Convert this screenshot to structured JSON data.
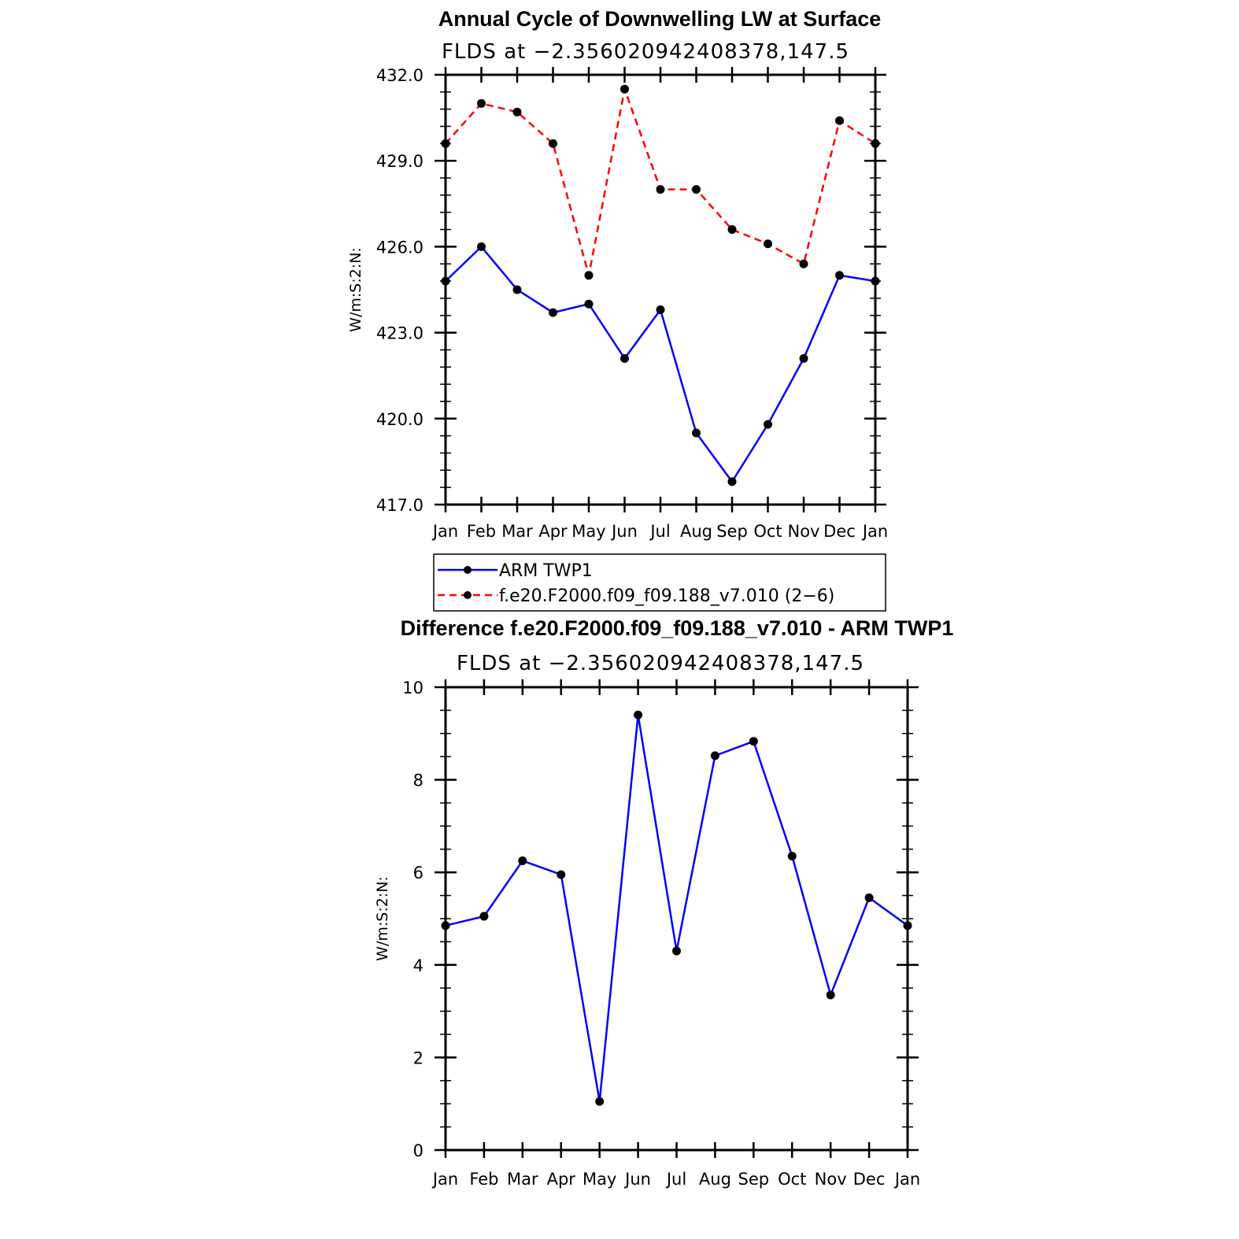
{
  "chart_data": [
    {
      "type": "line",
      "title": "Annual Cycle of Downwelling LW at Surface",
      "subtitle": "FLDS at −2.356020942408378,147.5",
      "ylabel": "W/m:S:2:N:",
      "xlabel": "",
      "categories": [
        "Jan",
        "Feb",
        "Mar",
        "Apr",
        "May",
        "Jun",
        "Jul",
        "Aug",
        "Sep",
        "Oct",
        "Nov",
        "Dec",
        "Jan"
      ],
      "ylim": [
        417,
        432
      ],
      "yticks": [
        "417.0",
        "420.0",
        "423.0",
        "426.0",
        "429.0",
        "432.0"
      ],
      "grid": false,
      "legend_position": "bottom",
      "series": [
        {
          "name": "ARM TWP1",
          "color": "#0000ff",
          "dash": "solid",
          "values": [
            424.8,
            426.0,
            424.5,
            423.7,
            424.0,
            422.1,
            423.8,
            419.5,
            417.8,
            419.8,
            422.1,
            425.0,
            424.8
          ]
        },
        {
          "name": "f.e20.F2000.f09_f09.188_v7.010 (2−6)",
          "color": "#ff0000",
          "dash": "dashed",
          "values": [
            429.6,
            431.0,
            430.7,
            429.6,
            425.0,
            431.5,
            428.0,
            428.0,
            426.6,
            426.1,
            425.4,
            430.4,
            429.6
          ]
        }
      ]
    },
    {
      "type": "line",
      "title": "Difference f.e20.F2000.f09_f09.188_v7.010 - ARM TWP1",
      "subtitle": "FLDS at −2.356020942408378,147.5",
      "ylabel": "W/m:S:2:N:",
      "xlabel": "",
      "categories": [
        "Jan",
        "Feb",
        "Mar",
        "Apr",
        "May",
        "Jun",
        "Jul",
        "Aug",
        "Sep",
        "Oct",
        "Nov",
        "Dec",
        "Jan"
      ],
      "ylim": [
        0,
        10
      ],
      "yticks": [
        "0",
        "2",
        "4",
        "6",
        "8",
        "10"
      ],
      "grid": false,
      "series": [
        {
          "name": "",
          "color": "#0000ff",
          "dash": "solid",
          "values": [
            4.85,
            5.05,
            6.25,
            5.95,
            1.05,
            9.4,
            4.3,
            8.52,
            8.83,
            6.35,
            3.35,
            5.45,
            4.85
          ]
        }
      ]
    }
  ]
}
